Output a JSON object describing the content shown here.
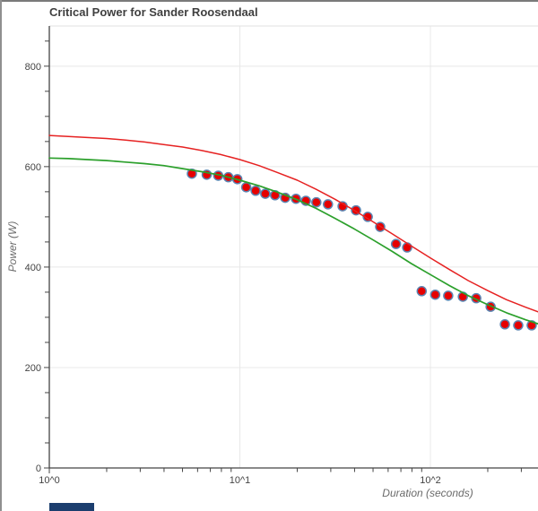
{
  "window": {
    "top_border_color": "#7a7a7a",
    "left_border_color": "#909090"
  },
  "header": {
    "title": "Critical Power for Sander Roosendaal"
  },
  "axes": {
    "x_title": "Duration (seconds)",
    "y_title": "Power (W)",
    "tick_color": "#444444",
    "grid_color": "#e8e8e8",
    "plot_top_line_color": "#e2e2e2",
    "axis_line_color": "#444444"
  },
  "partial_element": {
    "color": "#1c3e6e"
  },
  "chart_data": {
    "type": "scatter",
    "title": "Critical Power for Sander Roosendaal",
    "xlabel": "Duration (seconds)",
    "ylabel": "Power (W)",
    "x_scale": "log",
    "xlim": [
      1,
      367
    ],
    "ylim": [
      0,
      880
    ],
    "grid": true,
    "legend": "none",
    "x_tick_values": [
      1,
      10,
      100
    ],
    "x_tick_labels": [
      "10^0",
      "10^1",
      "10^2"
    ],
    "y_tick_values": [
      0,
      200,
      400,
      600,
      800
    ],
    "y_tick_labels": [
      "0",
      "200",
      "400",
      "600",
      "800"
    ],
    "y_minor_step": 50,
    "series": [
      {
        "name": "measured-power-points",
        "type": "scatter",
        "marker_fill": "#e60000",
        "marker_stroke": "#5b84b1",
        "marker_radius": 5,
        "points": [
          [
            5.6,
            586
          ],
          [
            6.7,
            584
          ],
          [
            7.7,
            582
          ],
          [
            8.7,
            579
          ],
          [
            9.7,
            575
          ],
          [
            10.8,
            559
          ],
          [
            12.1,
            552
          ],
          [
            13.6,
            546
          ],
          [
            15.3,
            543
          ],
          [
            17.3,
            538
          ],
          [
            19.7,
            536
          ],
          [
            22.2,
            532
          ],
          [
            25.2,
            529
          ],
          [
            29,
            525
          ],
          [
            34.6,
            521
          ],
          [
            40.7,
            513
          ],
          [
            46.9,
            500
          ],
          [
            54.5,
            480
          ],
          [
            66,
            446
          ],
          [
            75.5,
            439
          ],
          [
            90,
            352
          ],
          [
            106,
            345
          ],
          [
            124,
            343
          ],
          [
            148,
            341
          ],
          [
            174,
            338
          ],
          [
            207,
            321
          ],
          [
            246,
            286
          ],
          [
            289,
            284
          ],
          [
            340,
            284
          ]
        ]
      },
      {
        "name": "model-curve-green",
        "type": "line",
        "color": "#2ca02c",
        "width": 1.7,
        "points": [
          [
            1,
            617
          ],
          [
            1.26,
            616
          ],
          [
            1.58,
            614
          ],
          [
            2.0,
            612
          ],
          [
            2.51,
            609
          ],
          [
            3.16,
            606
          ],
          [
            3.98,
            602
          ],
          [
            5.01,
            596
          ],
          [
            6.31,
            590
          ],
          [
            7.94,
            583
          ],
          [
            10,
            573
          ],
          [
            12.6,
            562
          ],
          [
            15.8,
            549
          ],
          [
            20,
            534
          ],
          [
            25.1,
            517
          ],
          [
            31.6,
            497
          ],
          [
            39.8,
            476
          ],
          [
            50.1,
            454
          ],
          [
            63.1,
            431
          ],
          [
            79.4,
            407
          ],
          [
            100,
            385
          ],
          [
            126,
            363
          ],
          [
            158,
            343
          ],
          [
            200,
            325
          ],
          [
            251,
            309
          ],
          [
            316,
            295
          ],
          [
            367,
            287
          ]
        ]
      },
      {
        "name": "model-curve-red",
        "type": "line",
        "color": "#e62222",
        "width": 1.5,
        "points": [
          [
            1,
            662
          ],
          [
            1.26,
            660
          ],
          [
            1.58,
            658
          ],
          [
            2.0,
            656
          ],
          [
            2.51,
            653
          ],
          [
            3.16,
            649
          ],
          [
            3.98,
            644
          ],
          [
            5.01,
            639
          ],
          [
            6.31,
            632
          ],
          [
            7.94,
            624
          ],
          [
            10,
            614
          ],
          [
            12.6,
            602
          ],
          [
            15.8,
            588
          ],
          [
            20,
            573
          ],
          [
            25.1,
            555
          ],
          [
            31.6,
            535
          ],
          [
            39.8,
            513
          ],
          [
            50.1,
            490
          ],
          [
            63.1,
            466
          ],
          [
            79.4,
            442
          ],
          [
            100,
            418
          ],
          [
            126,
            395
          ],
          [
            158,
            373
          ],
          [
            200,
            353
          ],
          [
            251,
            335
          ],
          [
            316,
            320
          ],
          [
            367,
            311
          ]
        ]
      }
    ]
  }
}
